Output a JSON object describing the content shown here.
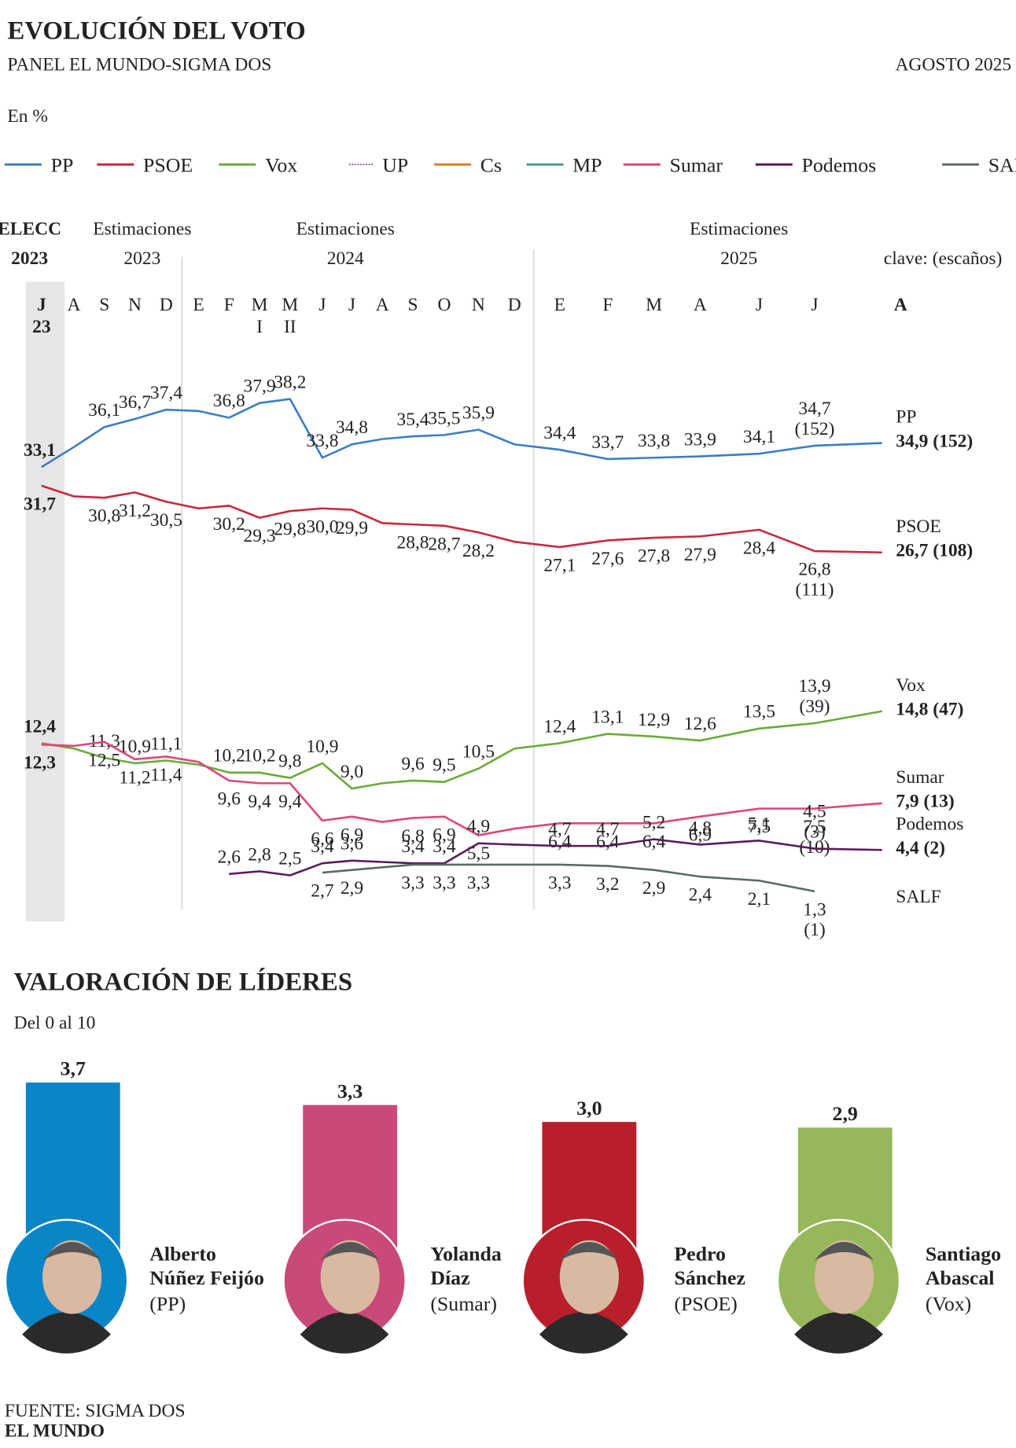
{
  "chart_data": [
    {
      "type": "line",
      "title": "EVOLUCIÓN DEL VOTO",
      "subtitle": "PANEL EL MUNDO-SIGMA DOS",
      "date": "AGOSTO 2025",
      "unit": "En %",
      "key_note": "clave: (escaños)",
      "periods": [
        [
          "ELECC",
          "2023"
        ],
        [
          "Estimaciones",
          "2023"
        ],
        [
          "Estimaciones",
          "2024"
        ],
        [
          "Estimaciones",
          "2025"
        ]
      ],
      "categories": [
        "J 23",
        "A",
        "S",
        "N",
        "D",
        "E",
        "F",
        "M I",
        "M II",
        "J",
        "J",
        "A",
        "S",
        "O",
        "N",
        "D",
        "E",
        "F",
        "M",
        "A",
        "J",
        "J",
        "A"
      ],
      "ylim": [
        0,
        40
      ],
      "series": [
        {
          "name": "PP",
          "color": "#3b7dc4",
          "values": [
            33.1,
            34.6,
            36.1,
            36.7,
            37.4,
            37.3,
            36.8,
            37.9,
            38.2,
            33.8,
            34.8,
            35.2,
            35.4,
            35.5,
            35.9,
            34.8,
            34.4,
            33.7,
            33.8,
            33.9,
            34.1,
            34.7,
            34.9
          ],
          "value_labels": [
            "33,1",
            null,
            "36,1",
            "36,7",
            "37,4",
            null,
            "36,8",
            "37,9",
            "38,2",
            "33,8",
            "34,8",
            null,
            "35,4",
            "35,5",
            "35,9",
            null,
            "34,4",
            "33,7",
            "33,8",
            "33,9",
            "34,1",
            "34,7 (152)",
            "34,9 (152)"
          ]
        },
        {
          "name": "PSOE",
          "color": "#c8283c",
          "values": [
            31.7,
            30.9,
            30.8,
            31.2,
            30.5,
            30.0,
            30.2,
            29.3,
            29.8,
            30.0,
            29.9,
            28.9,
            28.8,
            28.7,
            28.2,
            27.5,
            27.1,
            27.6,
            27.8,
            27.9,
            28.4,
            26.8,
            26.7
          ],
          "value_labels": [
            "31,7",
            null,
            "30,8",
            "31,2",
            "30,5",
            null,
            "30,2",
            "29,3",
            "29,8",
            "30,0",
            "29,9",
            null,
            "28,8",
            "28,7",
            "28,2",
            null,
            "27,1",
            "27,6",
            "27,8",
            "27,9",
            "28,4",
            "26,8 (111)",
            "26,7 (108)"
          ]
        },
        {
          "name": "Vox",
          "color": "#6aaa3a",
          "values": [
            12.4,
            12.0,
            11.3,
            10.9,
            11.1,
            10.8,
            10.2,
            10.2,
            9.8,
            10.9,
            9.0,
            9.4,
            9.6,
            9.5,
            10.5,
            12.0,
            12.4,
            13.1,
            12.9,
            12.6,
            13.5,
            13.9,
            14.8
          ],
          "value_labels": [
            "12,4",
            null,
            "11,3",
            "10,9",
            "11,1",
            null,
            "10,2",
            "10,2",
            "9,8",
            "10,9",
            "9,0",
            null,
            "9,6",
            "9,5",
            "10,5",
            null,
            "12,4",
            "13,1",
            "12,9",
            "12,6",
            "13,5",
            "13,9 (39)",
            "14,8 (47)"
          ]
        },
        {
          "name": "UP",
          "color": "#6b3c7a",
          "dash": "dotted",
          "values": [
            null,
            null,
            null,
            null,
            null,
            null,
            null,
            null,
            null,
            null,
            null,
            null,
            null,
            null,
            null,
            null,
            null,
            null,
            null,
            null,
            null,
            null,
            null
          ]
        },
        {
          "name": "Cs",
          "color": "#e07b20",
          "values": [
            null,
            null,
            null,
            null,
            null,
            null,
            null,
            null,
            null,
            null,
            null,
            null,
            null,
            null,
            null,
            null,
            null,
            null,
            null,
            null,
            null,
            null,
            null
          ]
        },
        {
          "name": "MP",
          "color": "#4a9a8a",
          "values": [
            null,
            null,
            null,
            null,
            null,
            null,
            null,
            null,
            null,
            null,
            null,
            null,
            null,
            null,
            null,
            null,
            null,
            null,
            null,
            null,
            null,
            null,
            null
          ]
        },
        {
          "name": "Sumar",
          "color": "#e0457b",
          "values": [
            12.3,
            12.2,
            12.5,
            11.2,
            11.4,
            11.0,
            9.6,
            9.4,
            9.4,
            6.6,
            6.9,
            6.5,
            6.8,
            6.9,
            5.5,
            6.0,
            6.4,
            6.4,
            6.4,
            6.9,
            7.5,
            7.5,
            7.9
          ],
          "value_labels": [
            "12,3",
            null,
            "12,5",
            "11,2",
            "11,4",
            null,
            "9,6",
            "9,4",
            "9,4",
            "6,6",
            "6,9",
            null,
            "6,8",
            "6,9",
            "5,5",
            null,
            "6,4",
            "6,4",
            "6,4",
            "6,9",
            "7,5",
            "7,5 (10)",
            "7,9 (13)"
          ]
        },
        {
          "name": "Podemos",
          "color": "#5a1a5a",
          "values": [
            null,
            null,
            null,
            null,
            null,
            null,
            2.6,
            2.8,
            2.5,
            3.4,
            3.6,
            3.5,
            3.4,
            3.4,
            4.9,
            4.8,
            4.7,
            4.7,
            5.2,
            4.8,
            5.1,
            4.5,
            4.4
          ],
          "value_labels": [
            null,
            null,
            null,
            null,
            null,
            null,
            "2,6",
            "2,8",
            "2,5",
            "3,4",
            "3,6",
            null,
            "3,4",
            "3,4",
            "4,9",
            null,
            "4,7",
            "4,7",
            "5,2",
            "4,8",
            "5,1",
            "4,5 (3)",
            "4,4 (2)"
          ]
        },
        {
          "name": "SALF",
          "color": "#5a6a6a",
          "values": [
            null,
            null,
            null,
            null,
            null,
            null,
            null,
            null,
            null,
            2.7,
            2.9,
            3.1,
            3.3,
            3.3,
            3.3,
            3.3,
            3.3,
            3.2,
            2.9,
            2.4,
            2.1,
            1.3,
            null
          ],
          "value_labels": [
            null,
            null,
            null,
            null,
            null,
            null,
            null,
            null,
            null,
            "2,7",
            "2,9",
            null,
            "3,3",
            "3,3",
            "3,3",
            null,
            "3,3",
            "3,2",
            "2,9",
            "2,4",
            "2,1",
            "1,3 (1)",
            null
          ]
        }
      ]
    },
    {
      "type": "bar",
      "title": "VALORACIÓN DE LÍDERES",
      "subtitle": "Del 0 al 10",
      "categories": [
        "Alberto Núñez Feijóo",
        "Yolanda Díaz",
        "Pedro Sánchez",
        "Santiago Abascal"
      ],
      "parties": [
        "(PP)",
        "(Sumar)",
        "(PSOE)",
        "(Vox)"
      ],
      "values": [
        3.7,
        3.3,
        3.0,
        2.9
      ],
      "value_labels": [
        "3,7",
        "3,3",
        "3,0",
        "2,9"
      ],
      "colors": [
        "#0a86c8",
        "#c94a78",
        "#b81f2b",
        "#97b85a"
      ]
    }
  ],
  "source": "FUENTE: SIGMA DOS",
  "brand": "EL MUNDO"
}
